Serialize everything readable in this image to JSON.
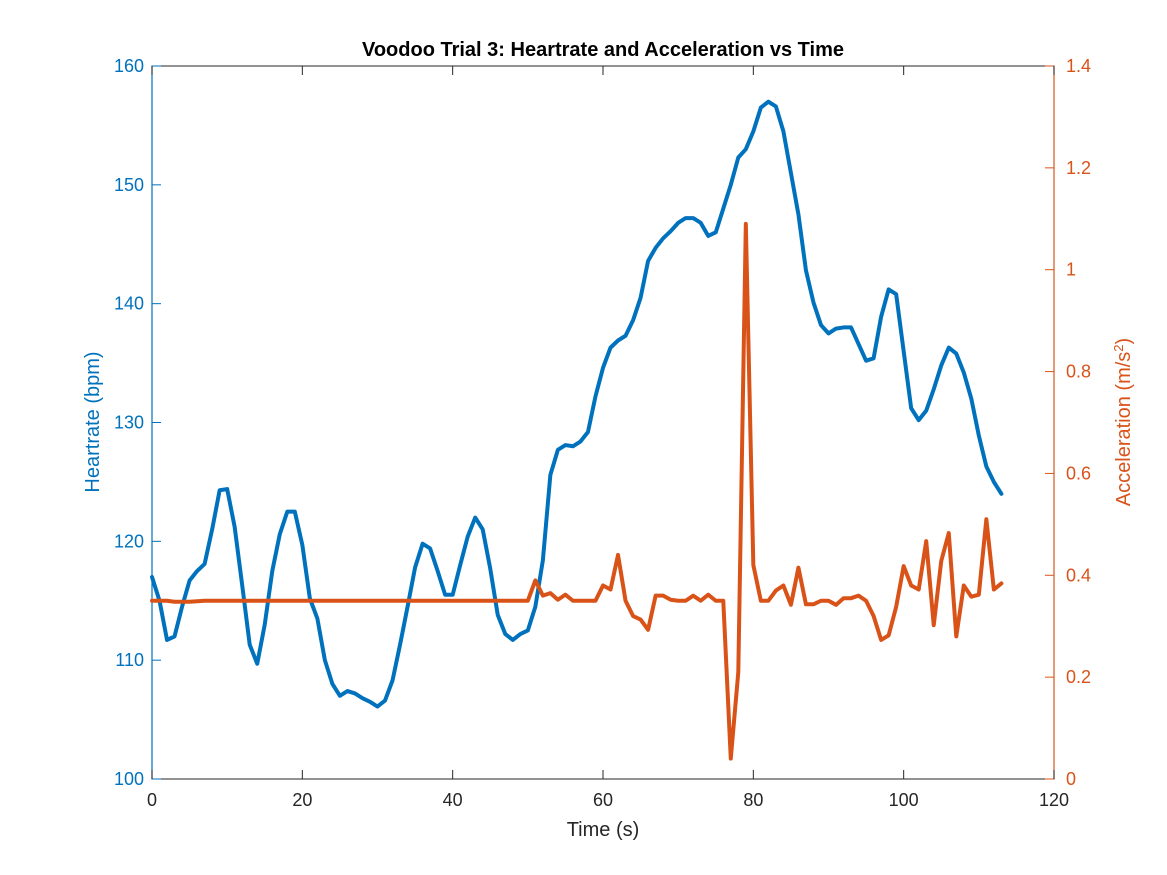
{
  "colors": {
    "heartrate": "#0072BD",
    "acceleration": "#D95319",
    "axis": "#262626",
    "background": "#ffffff"
  },
  "chart_data": {
    "type": "line",
    "title": "Voodoo Trial 3: Heartrate and Acceleration vs Time",
    "xlabel": "Time (s)",
    "ylabel_left": "Heartrate (bpm)",
    "ylabel_right_base": "Acceleration (m/s",
    "ylabel_right_sup": "2",
    "ylabel_right_close": ")",
    "xlim": [
      0,
      120
    ],
    "ylim_left": [
      100,
      160
    ],
    "ylim_right": [
      0,
      1.4
    ],
    "xticks": [
      0,
      20,
      40,
      60,
      80,
      100,
      120
    ],
    "xtick_labels": [
      "0",
      "20",
      "40",
      "60",
      "80",
      "100",
      "120"
    ],
    "yticks_left": [
      100,
      110,
      120,
      130,
      140,
      150,
      160
    ],
    "ytick_labels_left": [
      "100",
      "110",
      "120",
      "130",
      "140",
      "150",
      "160"
    ],
    "yticks_right": [
      0,
      0.2,
      0.4,
      0.6,
      0.8,
      1.0,
      1.2,
      1.4
    ],
    "ytick_labels_right": [
      "0",
      "0.2",
      "0.4",
      "0.6",
      "0.8",
      "1",
      "1.2",
      "1.4"
    ],
    "grid": false,
    "series": [
      {
        "axis": "left",
        "color": "#0072BD",
        "points": [
          [
            0,
            117
          ],
          [
            1,
            115
          ],
          [
            2,
            111.7
          ],
          [
            3,
            112
          ],
          [
            4,
            114.5
          ],
          [
            5,
            116.7
          ],
          [
            6,
            117.5
          ],
          [
            7,
            118.1
          ],
          [
            8,
            121
          ],
          [
            9,
            124.3
          ],
          [
            10,
            124.4
          ],
          [
            11,
            121.2
          ],
          [
            12,
            116.3
          ],
          [
            13,
            111.3
          ],
          [
            14,
            109.7
          ],
          [
            15,
            113
          ],
          [
            16,
            117.5
          ],
          [
            17,
            120.6
          ],
          [
            18,
            122.5
          ],
          [
            19,
            122.5
          ],
          [
            20,
            119.7
          ],
          [
            21,
            115.2
          ],
          [
            22,
            113.5
          ],
          [
            23,
            110
          ],
          [
            24,
            108
          ],
          [
            25,
            107
          ],
          [
            26,
            107.4
          ],
          [
            27,
            107.2
          ],
          [
            28,
            106.8
          ],
          [
            29,
            106.5
          ],
          [
            30,
            106.1
          ],
          [
            31,
            106.6
          ],
          [
            32,
            108.3
          ],
          [
            33,
            111.3
          ],
          [
            34,
            114.5
          ],
          [
            35,
            117.8
          ],
          [
            36,
            119.8
          ],
          [
            37,
            119.4
          ],
          [
            38,
            117.5
          ],
          [
            39,
            115.5
          ],
          [
            40,
            115.5
          ],
          [
            41,
            118
          ],
          [
            42,
            120.4
          ],
          [
            43,
            122
          ],
          [
            44,
            121
          ],
          [
            45,
            117.7
          ],
          [
            46,
            113.8
          ],
          [
            47,
            112.2
          ],
          [
            48,
            111.7
          ],
          [
            49,
            112.2
          ],
          [
            50,
            112.5
          ],
          [
            51,
            114.5
          ],
          [
            52,
            118.4
          ],
          [
            53,
            125.6
          ],
          [
            54,
            127.7
          ],
          [
            55,
            128.1
          ],
          [
            56,
            128
          ],
          [
            57,
            128.4
          ],
          [
            58,
            129.2
          ],
          [
            59,
            132.2
          ],
          [
            60,
            134.6
          ],
          [
            61,
            136.3
          ],
          [
            62,
            136.9
          ],
          [
            63,
            137.3
          ],
          [
            64,
            138.6
          ],
          [
            65,
            140.5
          ],
          [
            66,
            143.6
          ],
          [
            67,
            144.7
          ],
          [
            68,
            145.5
          ],
          [
            69,
            146.1
          ],
          [
            70,
            146.8
          ],
          [
            71,
            147.2
          ],
          [
            72,
            147.2
          ],
          [
            73,
            146.8
          ],
          [
            74,
            145.7
          ],
          [
            75,
            146
          ],
          [
            76,
            148
          ],
          [
            77,
            150
          ],
          [
            78,
            152.3
          ],
          [
            79,
            153
          ],
          [
            80,
            154.5
          ],
          [
            81,
            156.5
          ],
          [
            82,
            157
          ],
          [
            83,
            156.6
          ],
          [
            84,
            154.5
          ],
          [
            85,
            151
          ],
          [
            86,
            147.5
          ],
          [
            87,
            142.8
          ],
          [
            88,
            140.1
          ],
          [
            89,
            138.2
          ],
          [
            90,
            137.5
          ],
          [
            91,
            137.9
          ],
          [
            92,
            138
          ],
          [
            93,
            138
          ],
          [
            94,
            136.6
          ],
          [
            95,
            135.2
          ],
          [
            96,
            135.4
          ],
          [
            97,
            138.9
          ],
          [
            98,
            141.2
          ],
          [
            99,
            140.8
          ],
          [
            100,
            136
          ],
          [
            101,
            131.2
          ],
          [
            102,
            130.2
          ],
          [
            103,
            131
          ],
          [
            104,
            132.8
          ],
          [
            105,
            134.8
          ],
          [
            106,
            136.3
          ],
          [
            107,
            135.8
          ],
          [
            108,
            134.2
          ],
          [
            109,
            132
          ],
          [
            110,
            128.9
          ],
          [
            111,
            126.3
          ],
          [
            112,
            125
          ],
          [
            113,
            124
          ]
        ]
      },
      {
        "axis": "right",
        "color": "#D95319",
        "points": [
          [
            0,
            0.35
          ],
          [
            1,
            0.35
          ],
          [
            2,
            0.35
          ],
          [
            3,
            0.348
          ],
          [
            4,
            0.348
          ],
          [
            5,
            0.348
          ],
          [
            6,
            0.349
          ],
          [
            7,
            0.35
          ],
          [
            8,
            0.35
          ],
          [
            10,
            0.35
          ],
          [
            20,
            0.35
          ],
          [
            30,
            0.35
          ],
          [
            40,
            0.35
          ],
          [
            49,
            0.35
          ],
          [
            50,
            0.35
          ],
          [
            51,
            0.39
          ],
          [
            52,
            0.36
          ],
          [
            53,
            0.365
          ],
          [
            54,
            0.352
          ],
          [
            55,
            0.362
          ],
          [
            56,
            0.35
          ],
          [
            57,
            0.35
          ],
          [
            58,
            0.35
          ],
          [
            59,
            0.35
          ],
          [
            60,
            0.38
          ],
          [
            61,
            0.372
          ],
          [
            62,
            0.44
          ],
          [
            63,
            0.35
          ],
          [
            64,
            0.32
          ],
          [
            65,
            0.313
          ],
          [
            66,
            0.293
          ],
          [
            67,
            0.36
          ],
          [
            68,
            0.36
          ],
          [
            69,
            0.352
          ],
          [
            70,
            0.35
          ],
          [
            71,
            0.35
          ],
          [
            72,
            0.36
          ],
          [
            73,
            0.35
          ],
          [
            74,
            0.362
          ],
          [
            75,
            0.35
          ],
          [
            76,
            0.35
          ],
          [
            77,
            0.04
          ],
          [
            78,
            0.21
          ],
          [
            79,
            1.09
          ],
          [
            80,
            0.42
          ],
          [
            81,
            0.35
          ],
          [
            82,
            0.35
          ],
          [
            83,
            0.37
          ],
          [
            84,
            0.38
          ],
          [
            85,
            0.342
          ],
          [
            86,
            0.415
          ],
          [
            87,
            0.343
          ],
          [
            88,
            0.343
          ],
          [
            89,
            0.35
          ],
          [
            90,
            0.35
          ],
          [
            91,
            0.342
          ],
          [
            92,
            0.355
          ],
          [
            93,
            0.355
          ],
          [
            94,
            0.36
          ],
          [
            95,
            0.35
          ],
          [
            96,
            0.32
          ],
          [
            97,
            0.273
          ],
          [
            98,
            0.282
          ],
          [
            99,
            0.338
          ],
          [
            100,
            0.418
          ],
          [
            101,
            0.38
          ],
          [
            102,
            0.372
          ],
          [
            103,
            0.467
          ],
          [
            104,
            0.302
          ],
          [
            105,
            0.428
          ],
          [
            106,
            0.483
          ],
          [
            107,
            0.28
          ],
          [
            108,
            0.38
          ],
          [
            109,
            0.358
          ],
          [
            110,
            0.362
          ],
          [
            111,
            0.51
          ],
          [
            112,
            0.372
          ],
          [
            113,
            0.384
          ]
        ]
      }
    ]
  }
}
